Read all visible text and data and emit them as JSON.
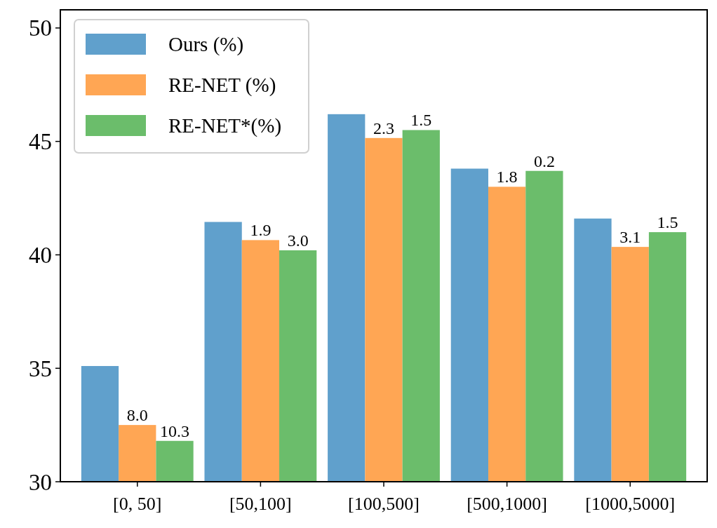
{
  "chart_data": {
    "type": "bar",
    "categories": [
      "[0, 50]",
      "[50,100]",
      "[100,500]",
      "[500,1000]",
      "[1000,5000]"
    ],
    "series": [
      {
        "name": "Ours (%)",
        "color": "#60a0cc",
        "values": [
          35.1,
          41.45,
          46.2,
          43.8,
          41.6
        ]
      },
      {
        "name": "RE-NET (%)",
        "color": "#ffa654",
        "values": [
          32.5,
          40.65,
          45.15,
          43.0,
          40.35
        ]
      },
      {
        "name": "RE-NET*(%)",
        "color": "#6bbd6b",
        "values": [
          31.8,
          40.2,
          45.5,
          43.7,
          41.0
        ]
      }
    ],
    "annotations": [
      {
        "text": "8.0",
        "x": "[0, 50]",
        "y": 32.5
      },
      "10.3",
      {
        "text": "1.9",
        "x": "[50,100]",
        "y": 40.65
      },
      "3.0",
      {
        "text": "2.3",
        "x": "[100,500]",
        "y": 45.15
      },
      "1.5",
      {
        "text": "1.8",
        "x": "[500,1000]",
        "y": 43.0
      },
      "0.2",
      {
        "text": "3.1",
        "x": "[1000,5000]",
        "y": 40.35
      },
      "1.5"
    ],
    "ylim": [
      30,
      50.8
    ],
    "yticks": [
      30,
      35,
      40,
      45,
      50
    ],
    "legend": "top left",
    "grid": false
  }
}
